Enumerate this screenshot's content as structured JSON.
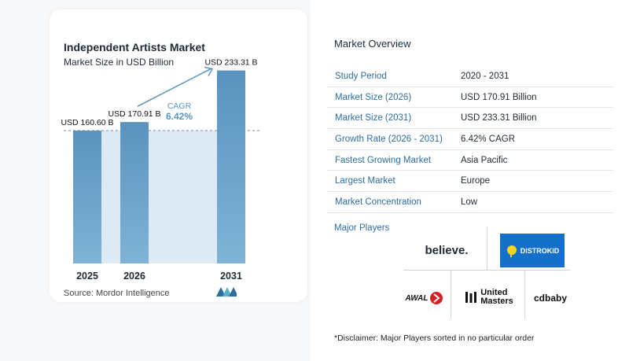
{
  "title": "Independent Artists Market",
  "subtitle": "Market Size in USD Billion",
  "source": "Source:  Mordor Intelligence",
  "chart_data": {
    "type": "bar",
    "categories": [
      "2025",
      "2026",
      "2031"
    ],
    "values": [
      160.6,
      170.91,
      233.31
    ],
    "value_labels": [
      "USD 160.60 B",
      "USD 170.91 B",
      "USD 233.31 B"
    ],
    "annotation": {
      "label": "CAGR",
      "value": "6.42%"
    },
    "ylim": [
      0,
      250
    ],
    "bar_color": "#5a93be",
    "grid": false
  },
  "overview": {
    "title": "Market Overview",
    "rows": [
      {
        "k": "Study Period",
        "v": "2020 - 2031"
      },
      {
        "k": "Market Size (2026)",
        "v": "USD 170.91 Billion"
      },
      {
        "k": "Market Size (2031)",
        "v": "USD 233.31 Billion"
      },
      {
        "k": "Growth Rate (2026 - 2031)",
        "v": "6.42% CAGR"
      },
      {
        "k": "Fastest Growing Market",
        "v": "Asia Pacific"
      },
      {
        "k": "Largest Market",
        "v": "Europe"
      },
      {
        "k": "Market Concentration",
        "v": "Low"
      }
    ]
  },
  "players": {
    "title": "Major Players",
    "logos": {
      "believe": "believe.",
      "distrokid": "DISTROKID",
      "awal": "AWAL",
      "united_masters_1": "United",
      "united_masters_2": "Masters",
      "cdbaby": "cdbaby"
    }
  },
  "disclaimer": "*Disclaimer: Major Players sorted in no particular order"
}
